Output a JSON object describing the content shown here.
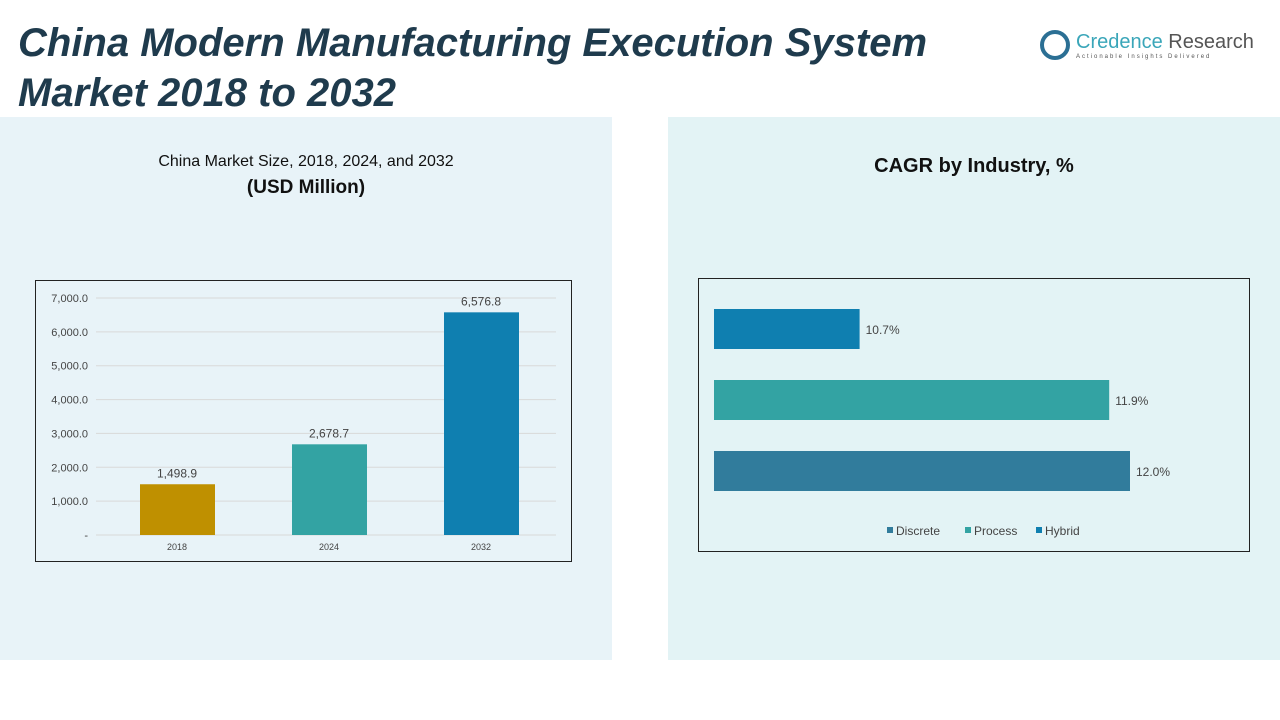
{
  "title": "China Modern Manufacturing Execution System Market 2018 to 2032",
  "logo": {
    "name_a": "Credence",
    "name_b": " Research",
    "tagline": "Actionable Insights Delivered"
  },
  "chart_data": [
    {
      "type": "bar",
      "title": "China Market Size, 2018, 2024, and 2032",
      "subtitle": "(USD Million)",
      "categories": [
        "2018",
        "2024",
        "2032"
      ],
      "values": [
        1498.9,
        2678.7,
        6576.8
      ],
      "value_labels": [
        "1,498.9",
        "2,678.7",
        "6,576.8"
      ],
      "colors": [
        "#bf9000",
        "#33a3a3",
        "#0f7fb0"
      ],
      "ylim": [
        0,
        7000
      ],
      "yticks": [
        "-",
        "1,000.0",
        "2,000.0",
        "3,000.0",
        "4,000.0",
        "5,000.0",
        "6,000.0",
        "7,000.0"
      ],
      "grid": true
    },
    {
      "type": "bar",
      "orientation": "horizontal",
      "title": "CAGR by Industry, %",
      "series": [
        {
          "name": "Discrete",
          "value": 12.0,
          "label": "12.0%",
          "color": "#317c9c"
        },
        {
          "name": "Process",
          "value": 11.9,
          "label": "11.9%",
          "color": "#33a3a3"
        },
        {
          "name": "Hybrid",
          "value": 10.7,
          "label": "10.7%",
          "color": "#0f7fb0"
        }
      ],
      "legend": "bottom",
      "xlim": [
        10.0,
        12.5
      ]
    }
  ]
}
